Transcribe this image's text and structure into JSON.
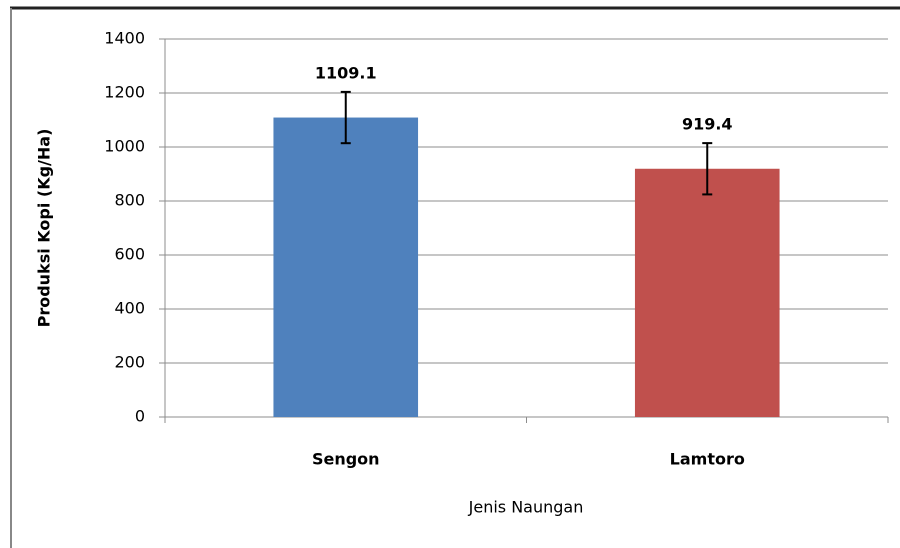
{
  "chart_data": {
    "type": "bar",
    "categories": [
      "Sengon",
      "Lamtoro"
    ],
    "series": [
      {
        "name": "Produksi Kopi",
        "values": [
          1109.1,
          919.4
        ],
        "errors": [
          95,
          95
        ],
        "colors": [
          "#4f81bd",
          "#c0504d"
        ]
      }
    ],
    "y_label": "Produksi Kopi (Kg/Ha)",
    "x_label": "Jenis Naungan",
    "ylim": [
      0,
      1400
    ],
    "yticks": [
      0,
      200,
      400,
      600,
      800,
      1000,
      1200,
      1400
    ],
    "grid": true
  }
}
